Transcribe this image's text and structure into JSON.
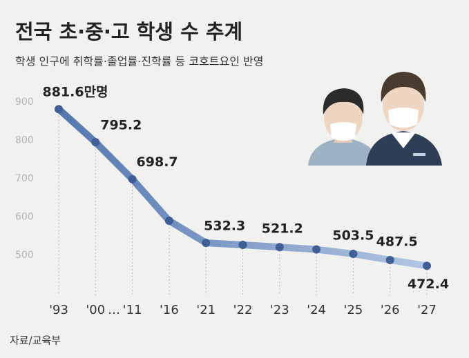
{
  "chart_data": {
    "type": "line",
    "title": "전국 초·중·고 학생 수 추계",
    "subtitle": "학생 인구에 취학률·졸업률·진학률 등 코호트요인 반영",
    "source": "자료/교육부",
    "gap_mark": "…",
    "categories": [
      "'93",
      "'00",
      "'11",
      "'16",
      "'21",
      "'22",
      "'23",
      "'24",
      "'25",
      "'26",
      "'27"
    ],
    "values": [
      881.6,
      795.2,
      698.7,
      590,
      532.3,
      527,
      521.2,
      515,
      503.5,
      487.5,
      472.4
    ],
    "value_labels": [
      "881.6만명",
      "795.2",
      "698.7",
      null,
      "532.3",
      null,
      "521.2",
      null,
      "503.5",
      "487.5",
      "472.4"
    ],
    "color": "#3f5f96",
    "ylim": [
      400,
      950
    ],
    "yticks": [
      500,
      600,
      700,
      800,
      900
    ]
  }
}
